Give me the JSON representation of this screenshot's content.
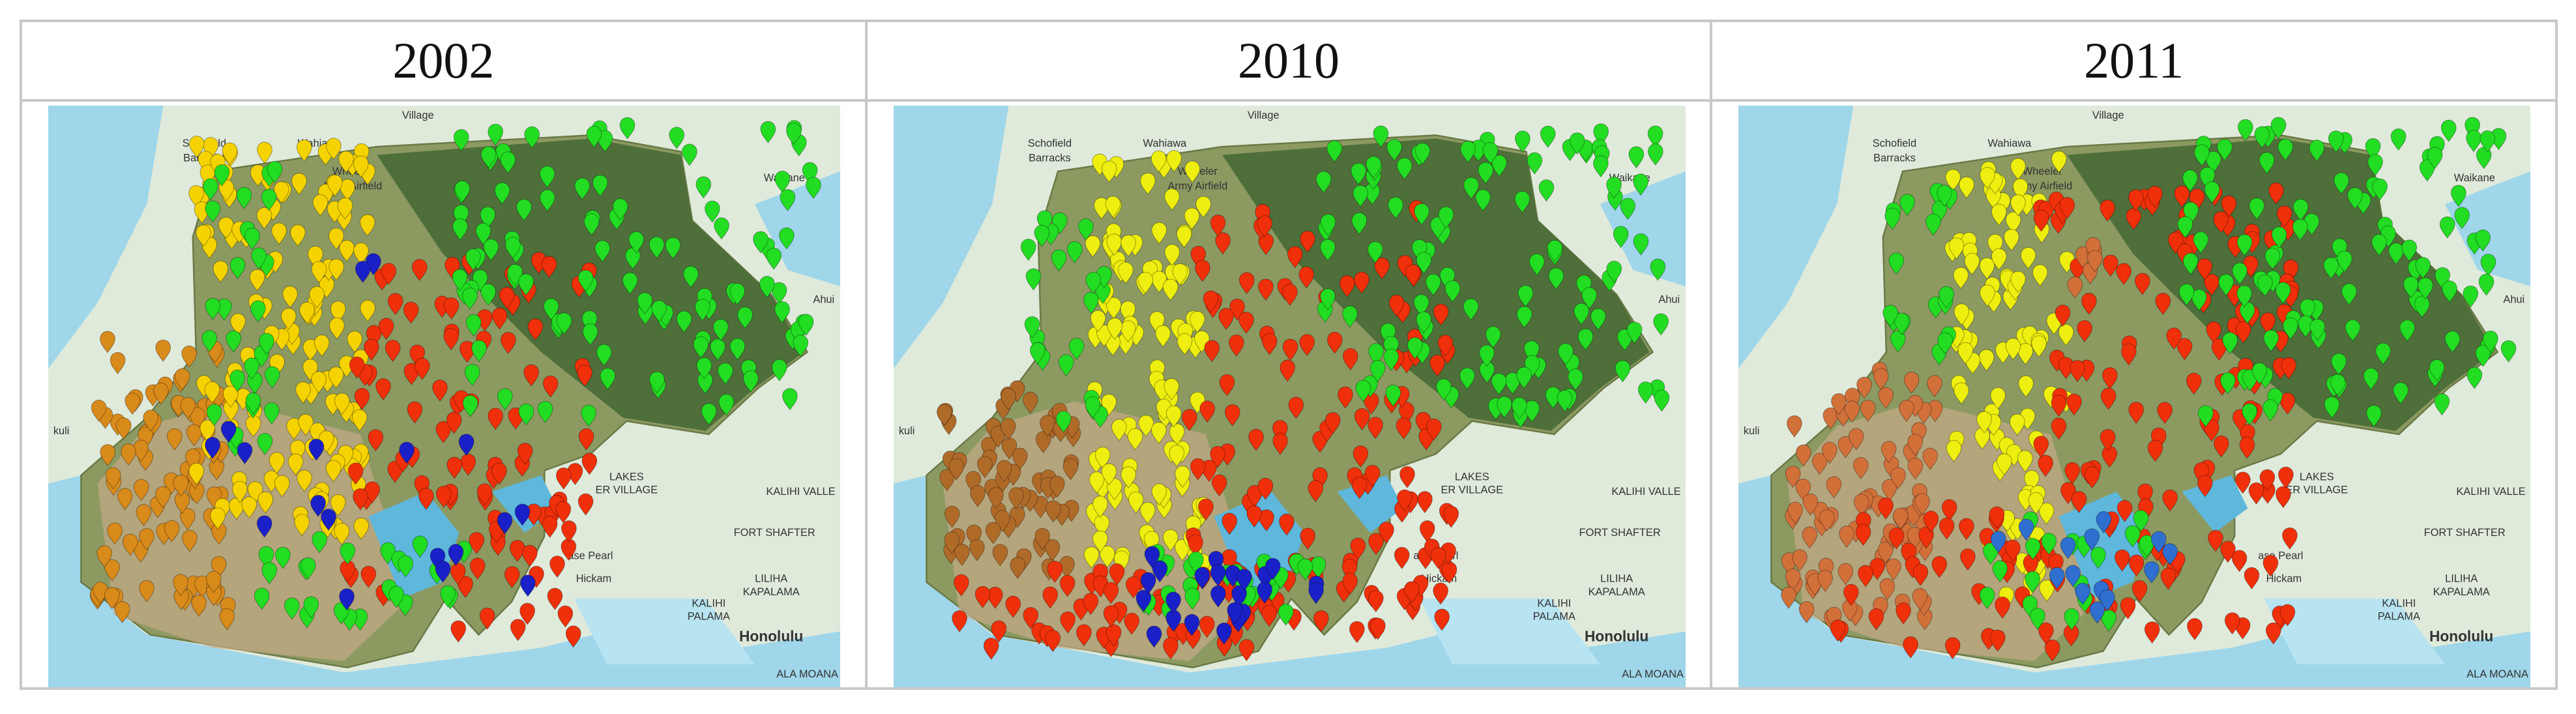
{
  "panels": [
    {
      "title": "2002"
    },
    {
      "title": "2010"
    },
    {
      "title": "2011"
    }
  ],
  "map_labels": [
    "Village",
    "Schofield",
    "Barracks",
    "Wahiawa",
    "Wheeler",
    "Army Airfield",
    "Waikane",
    "Ahui",
    "kuli",
    "LAKES",
    "ER VILLAGE",
    "KALIHI VALLE",
    "FORT SHAFTER",
    "LILIHA",
    "KAPALAMA",
    "KALIHI",
    "PALAMA",
    "ase Pearl",
    "Hickam",
    "Honolulu",
    "ALA MOANA"
  ]
}
